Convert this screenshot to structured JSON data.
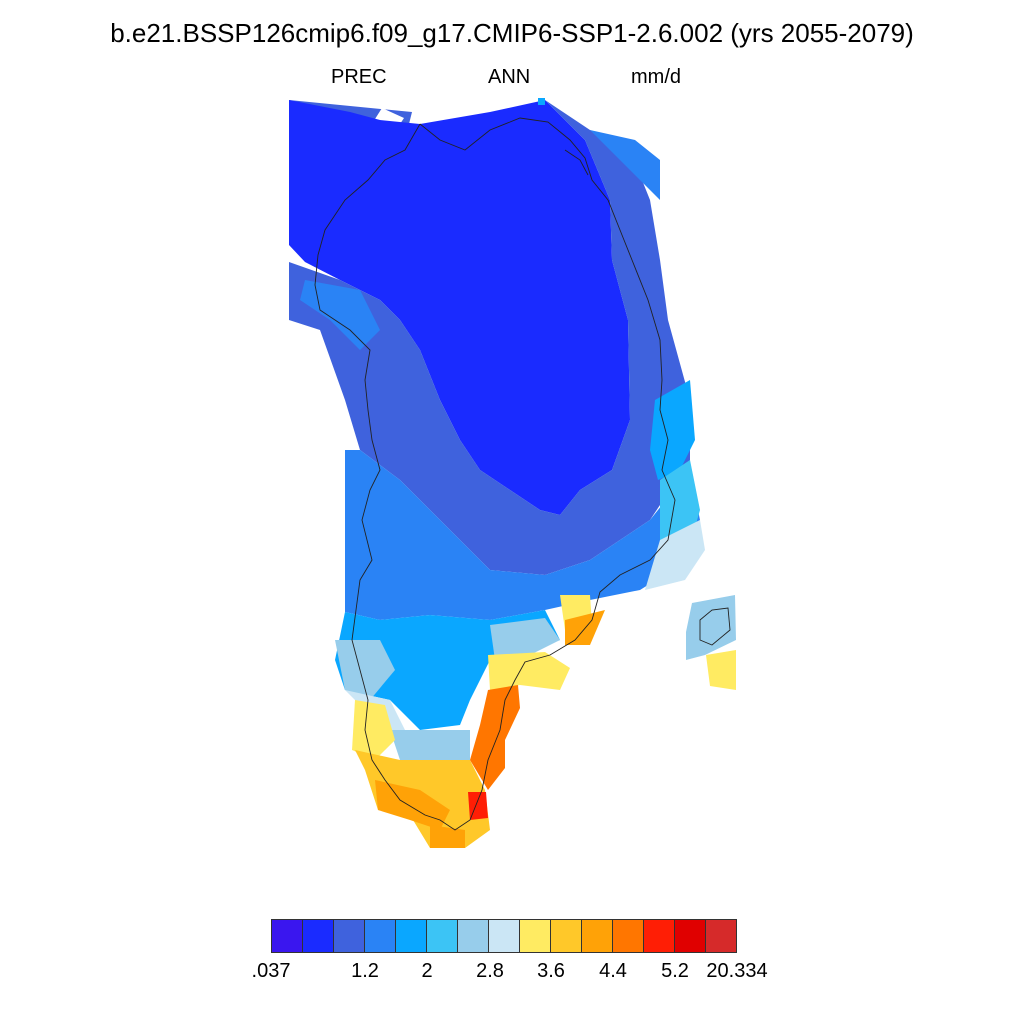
{
  "title": "b.e21.BSSP126cmip6.f09_g17.CMIP6-SSP1-2.6.002 (yrs 2055-2079)",
  "subtitle": {
    "left": "PREC",
    "center": "ANN",
    "right": "mm/d"
  },
  "palette": [
    "#3a16ef",
    "#1a2bff",
    "#3f62dd",
    "#2a83f5",
    "#0aa7ff",
    "#3cc4f5",
    "#97cdeb",
    "#cbe6f5",
    "#ffeb62",
    "#ffc829",
    "#ffa207",
    "#ff7600",
    "#ff1e05",
    "#e00000",
    "#d62a2a"
  ],
  "colorbar_labels": [
    ".037",
    "",
    "1.2",
    "2",
    "2.8",
    "3.6",
    "4.4",
    "5.2",
    "20.334"
  ],
  "icons": {
    "map": "greenland-precipitation-map"
  }
}
